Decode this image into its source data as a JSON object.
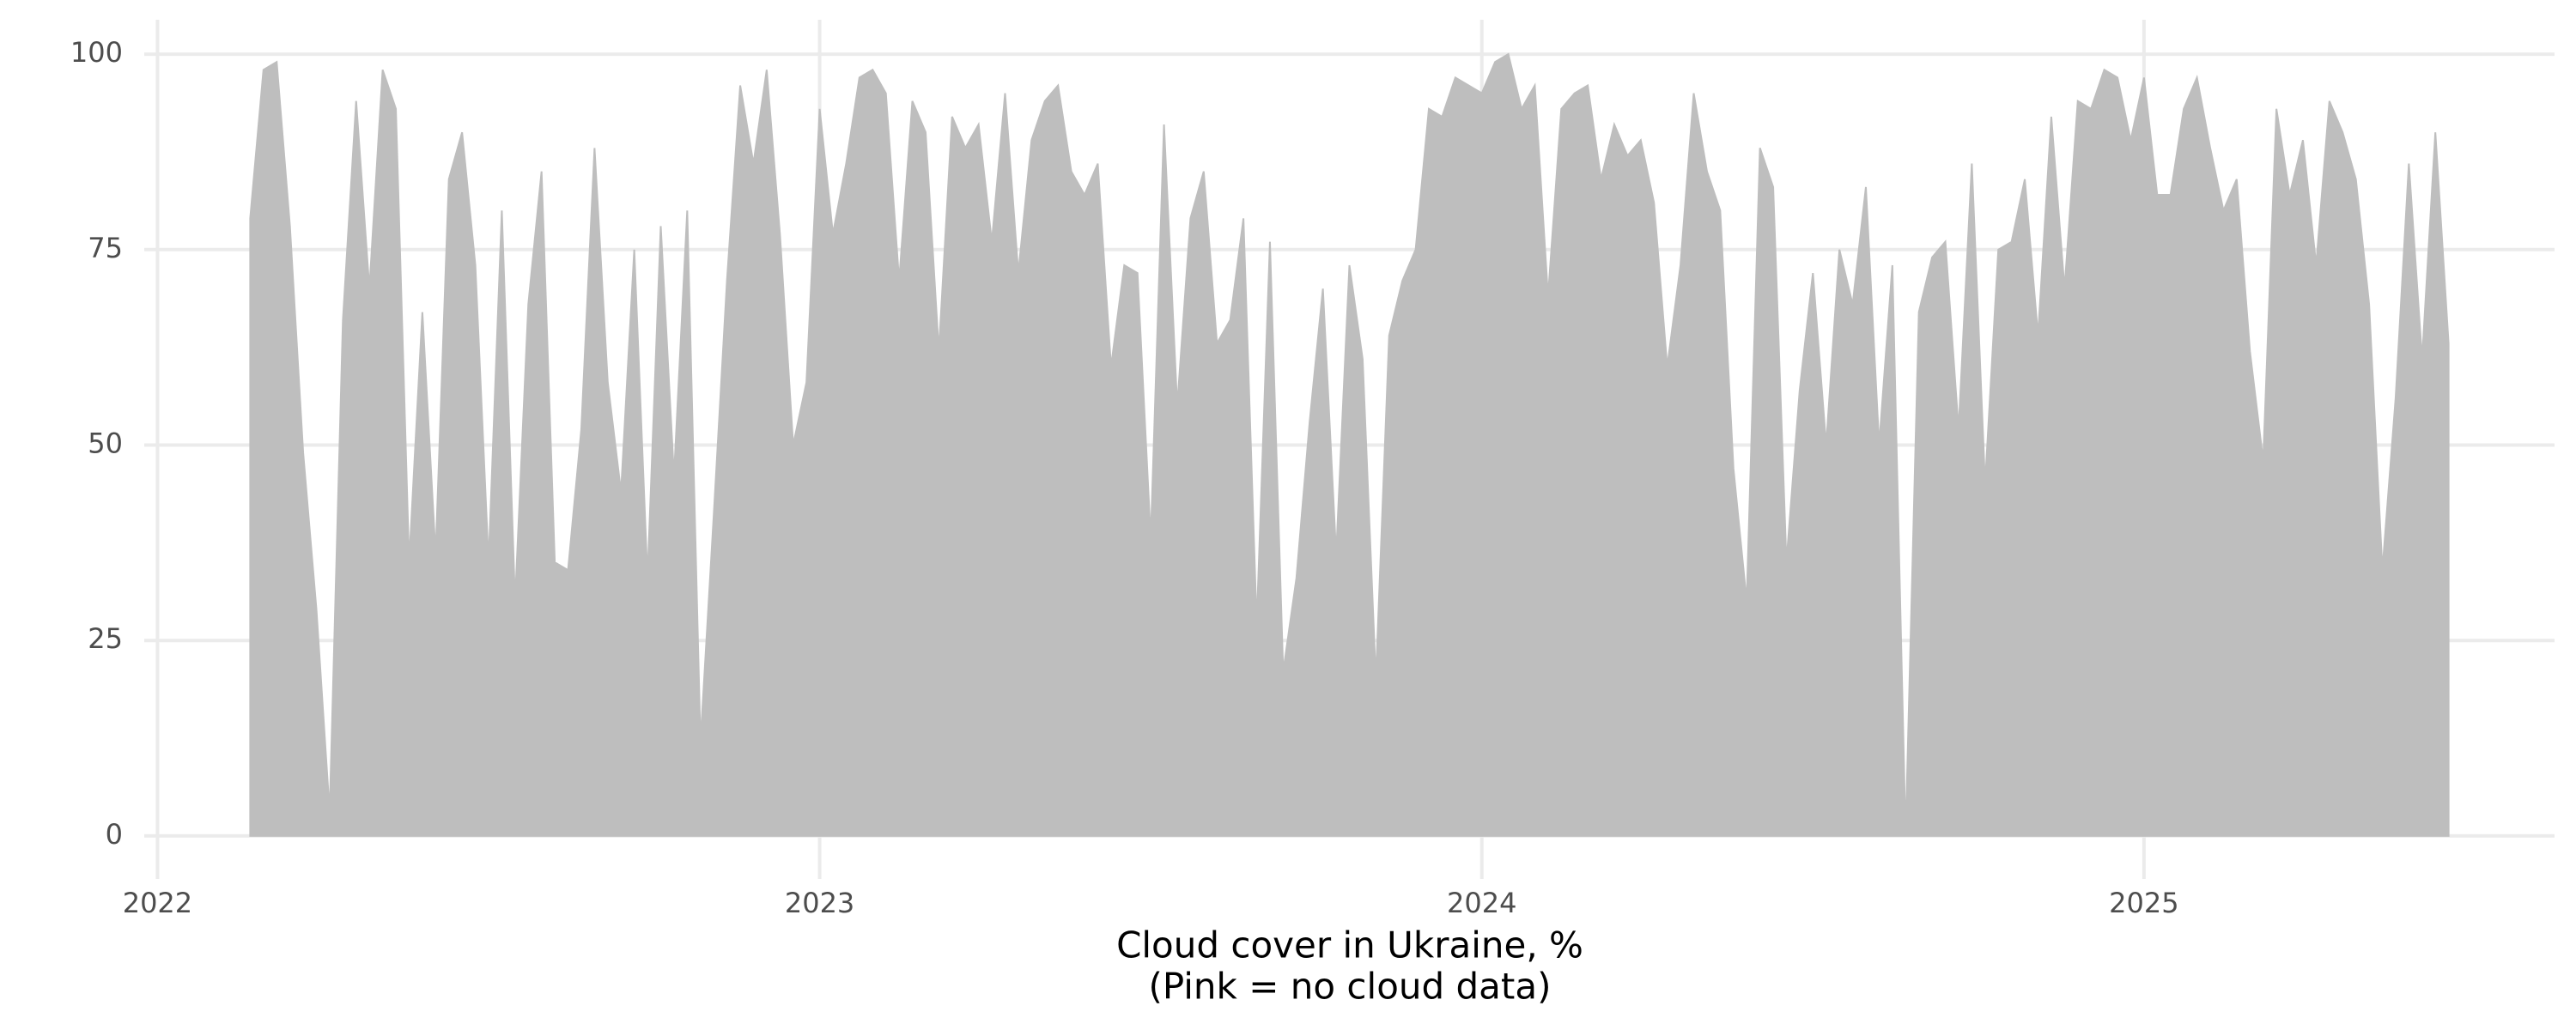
{
  "chart_data": {
    "type": "area",
    "xlabel": "Cloud cover in Ukraine, %",
    "xlabel_note": "(Pink = no cloud data)",
    "color": "#bebebe",
    "grid": true,
    "xlim": [
      2021.98,
      2025.62
    ],
    "xticks": [
      2022,
      2023,
      2024,
      2025
    ],
    "ylim": [
      -4.4,
      104.4
    ],
    "yticks": [
      0,
      25,
      50,
      75,
      100
    ],
    "x": [
      2022.14,
      2022.16,
      2022.18,
      2022.2,
      2022.22,
      2022.24,
      2022.26,
      2022.28,
      2022.3,
      2022.32,
      2022.34,
      2022.36,
      2022.38,
      2022.4,
      2022.42,
      2022.44,
      2022.46,
      2022.48,
      2022.5,
      2022.52,
      2022.54,
      2022.56,
      2022.58,
      2022.6,
      2022.62,
      2022.64,
      2022.66,
      2022.68,
      2022.7,
      2022.72,
      2022.74,
      2022.76,
      2022.78,
      2022.8,
      2022.82,
      2022.84,
      2022.86,
      2022.88,
      2022.9,
      2022.92,
      2022.94,
      2022.96,
      2022.98,
      2023.0,
      2023.02,
      2023.04,
      2023.06,
      2023.08,
      2023.1,
      2023.12,
      2023.14,
      2023.16,
      2023.18,
      2023.2,
      2023.22,
      2023.24,
      2023.26,
      2023.28,
      2023.3,
      2023.32,
      2023.34,
      2023.36,
      2023.38,
      2023.4,
      2023.42,
      2023.44,
      2023.46,
      2023.48,
      2023.5,
      2023.52,
      2023.54,
      2023.56,
      2023.58,
      2023.6,
      2023.62,
      2023.64,
      2023.66,
      2023.68,
      2023.7,
      2023.72,
      2023.74,
      2023.76,
      2023.78,
      2023.8,
      2023.82,
      2023.84,
      2023.86,
      2023.88,
      2023.9,
      2023.92,
      2023.94,
      2023.96,
      2023.98,
      2024.0,
      2024.02,
      2024.04,
      2024.06,
      2024.08,
      2024.1,
      2024.12,
      2024.14,
      2024.16,
      2024.18,
      2024.2,
      2024.22,
      2024.24,
      2024.26,
      2024.28,
      2024.3,
      2024.32,
      2024.34,
      2024.36,
      2024.38,
      2024.4,
      2024.42,
      2024.44,
      2024.46,
      2024.48,
      2024.5,
      2024.52,
      2024.54,
      2024.56,
      2024.58,
      2024.6,
      2024.62,
      2024.64,
      2024.66,
      2024.68,
      2024.7,
      2024.72,
      2024.74,
      2024.76,
      2024.78,
      2024.8,
      2024.82,
      2024.84,
      2024.86,
      2024.88,
      2024.9,
      2024.92,
      2024.94,
      2024.96,
      2024.98,
      2025.0,
      2025.02,
      2025.04,
      2025.06,
      2025.08,
      2025.1,
      2025.12,
      2025.14,
      2025.16,
      2025.18,
      2025.2,
      2025.22,
      2025.24,
      2025.26,
      2025.28,
      2025.3,
      2025.32,
      2025.34,
      2025.36,
      2025.38,
      2025.4,
      2025.42,
      2025.44,
      2025.46
    ],
    "values": [
      79,
      98,
      99,
      78,
      49,
      29,
      3,
      66,
      94,
      70,
      98,
      93,
      35,
      67,
      36,
      84,
      90,
      73,
      35,
      80,
      30,
      68,
      85,
      35,
      34,
      52,
      88,
      58,
      44,
      75,
      33,
      78,
      46,
      80,
      12,
      41,
      71,
      96,
      86,
      98,
      77,
      50,
      58,
      93,
      77,
      86,
      97,
      98,
      95,
      71,
      94,
      90,
      62,
      92,
      88,
      91,
      76,
      95,
      72,
      89,
      94,
      96,
      85,
      82,
      86,
      60,
      73,
      72,
      38,
      91,
      55,
      79,
      85,
      63,
      66,
      79,
      27,
      76,
      21,
      33,
      53,
      70,
      36,
      73,
      61,
      20,
      64,
      71,
      75,
      93,
      92,
      97,
      96,
      95,
      99,
      100,
      93,
      96,
      69,
      93,
      95,
      96,
      84,
      91,
      87,
      89,
      81,
      60,
      73,
      95,
      85,
      80,
      47,
      30,
      88,
      83,
      35,
      57,
      72,
      50,
      75,
      68,
      83,
      50,
      73,
      0,
      67,
      74,
      76,
      52,
      86,
      45,
      75,
      76,
      84,
      64,
      92,
      70,
      94,
      93,
      98,
      97,
      89,
      97,
      82,
      82,
      93,
      97,
      88,
      80,
      84,
      62,
      48,
      93,
      82,
      89,
      73,
      94,
      90,
      84,
      68,
      34,
      56,
      86,
      61,
      90,
      63
    ]
  }
}
